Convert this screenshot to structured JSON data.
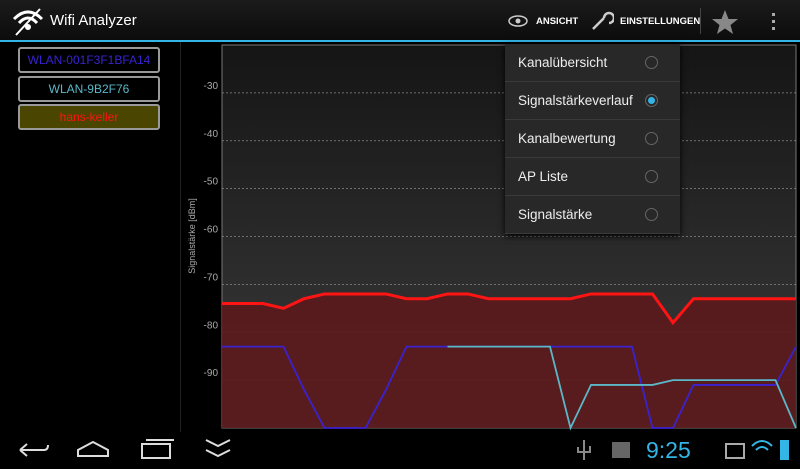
{
  "action_bar": {
    "title": "Wifi Analyzer",
    "actions": [
      "ANSICHT",
      "EINSTELLUNGEN"
    ]
  },
  "menu": {
    "items": [
      "Kanalübersicht",
      "Signalstärkeverlauf",
      "Kanalbewertung",
      "AP Liste",
      "Signalstärke"
    ],
    "selected": 1
  },
  "status_bar": {
    "time": "9:25"
  },
  "chart_data": {
    "type": "line",
    "y_label": "Signalstärke [dBm]",
    "ylim": [
      -100,
      -20
    ],
    "yticks": [
      -30,
      -40,
      -50,
      -60,
      -70,
      -80,
      -90
    ],
    "grid": true,
    "series": [
      {
        "name": "WLAN-001F3F1BFA14",
        "color": "#3a22d0",
        "values": [
          -83,
          -83,
          -83,
          -83,
          -92,
          -100,
          -100,
          -100,
          -92,
          -83,
          -83,
          -83,
          -83,
          -83,
          -83,
          -83,
          -83,
          -83,
          -83,
          -83,
          -83,
          -100,
          -100,
          -91,
          -91,
          -91,
          -91,
          -91,
          -83
        ]
      },
      {
        "name": "WLAN-9B2F76",
        "color": "#5ab8c8",
        "values": [
          null,
          null,
          null,
          null,
          null,
          null,
          null,
          null,
          null,
          null,
          null,
          -83,
          -83,
          -83,
          -83,
          -83,
          -83,
          -100,
          -91,
          -91,
          -91,
          -91,
          -90,
          -90,
          -90,
          -90,
          -90,
          -90,
          -100
        ]
      },
      {
        "name": "hans-keller",
        "color": "#ff1414",
        "fill": "#5c1a1c",
        "values": [
          -74,
          -74,
          -74,
          -75,
          -73,
          -72,
          -72,
          -72,
          -72,
          -73,
          -73,
          -72,
          -72,
          -73,
          -73,
          -73,
          -73,
          -73,
          -72,
          -72,
          -72,
          -72,
          -78,
          -73,
          -73,
          -73,
          -73,
          -73,
          -73
        ]
      }
    ]
  }
}
